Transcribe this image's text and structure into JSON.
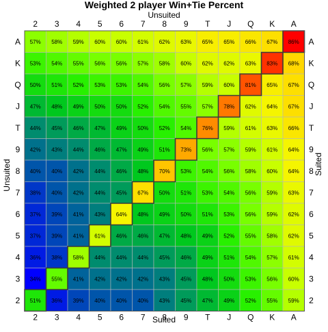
{
  "chart_data": {
    "type": "heatmap",
    "title": "Weighted 2 player Win+Tie Percent",
    "top_axis_label": "Unsuited",
    "bottom_axis_label": "Suited",
    "left_axis_label": "Unsuited",
    "right_axis_label": "Suited",
    "ranks_columns": [
      "2",
      "3",
      "4",
      "5",
      "6",
      "7",
      "8",
      "9",
      "T",
      "J",
      "Q",
      "K",
      "A"
    ],
    "ranks_rows_top_to_bottom": [
      "A",
      "K",
      "Q",
      "J",
      "T",
      "9",
      "8",
      "7",
      "6",
      "5",
      "4",
      "3",
      "2"
    ],
    "unit": "%",
    "value_range": [
      30,
      90
    ],
    "grid": true,
    "values": [
      [
        57,
        58,
        59,
        60,
        60,
        61,
        62,
        63,
        65,
        65,
        66,
        67,
        86
      ],
      [
        53,
        54,
        55,
        56,
        56,
        57,
        58,
        60,
        62,
        62,
        63,
        83,
        68
      ],
      [
        50,
        51,
        52,
        53,
        53,
        54,
        56,
        57,
        59,
        60,
        81,
        65,
        67
      ],
      [
        47,
        48,
        49,
        50,
        50,
        52,
        54,
        55,
        57,
        78,
        62,
        64,
        67
      ],
      [
        44,
        45,
        46,
        47,
        49,
        50,
        52,
        54,
        76,
        59,
        61,
        63,
        66
      ],
      [
        42,
        43,
        44,
        46,
        47,
        49,
        51,
        73,
        56,
        57,
        59,
        61,
        64
      ],
      [
        40,
        40,
        42,
        44,
        46,
        48,
        70,
        53,
        54,
        56,
        58,
        60,
        64
      ],
      [
        38,
        40,
        42,
        44,
        45,
        67,
        50,
        51,
        53,
        54,
        56,
        59,
        63
      ],
      [
        37,
        39,
        41,
        43,
        64,
        48,
        49,
        50,
        51,
        53,
        56,
        59,
        62
      ],
      [
        37,
        39,
        41,
        61,
        46,
        46,
        47,
        48,
        49,
        52,
        55,
        58,
        62
      ],
      [
        36,
        38,
        58,
        44,
        44,
        44,
        45,
        46,
        49,
        51,
        54,
        57,
        61
      ],
      [
        34,
        55,
        41,
        42,
        42,
        42,
        43,
        45,
        48,
        50,
        53,
        56,
        60
      ],
      [
        51,
        36,
        39,
        40,
        40,
        40,
        43,
        45,
        47,
        49,
        52,
        55,
        59
      ]
    ]
  }
}
